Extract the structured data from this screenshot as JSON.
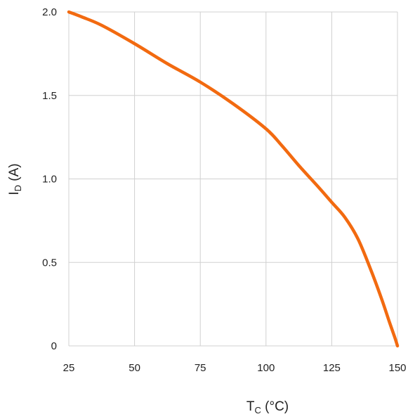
{
  "chart_data": {
    "type": "line",
    "title": "",
    "xlabel": {
      "main": "T",
      "sub": "C",
      "unit": " (°C)"
    },
    "ylabel": {
      "main": "I",
      "sub": "D",
      "unit": " (A)"
    },
    "xlim": [
      25,
      150
    ],
    "ylim": [
      0,
      2.0
    ],
    "xticks": [
      25,
      50,
      75,
      100,
      125,
      150
    ],
    "xtick_labels": [
      "25",
      "50",
      "75",
      "100",
      "125",
      "150"
    ],
    "yticks": [
      0,
      0.5,
      1.0,
      1.5,
      2.0
    ],
    "ytick_labels": [
      "0",
      "0.5",
      "1.0",
      "1.5",
      "2.0"
    ],
    "grid": true,
    "legend": "none",
    "series": [
      {
        "color": "#f26a10",
        "x": [
          25,
          30,
          37.5,
          50,
          62.5,
          75,
          87.5,
          100,
          106,
          112.5,
          120,
          125,
          130,
          135,
          140,
          144,
          147,
          149,
          150
        ],
        "y": [
          2.0,
          1.97,
          1.92,
          1.81,
          1.69,
          1.58,
          1.45,
          1.3,
          1.2,
          1.08,
          0.95,
          0.86,
          0.77,
          0.64,
          0.45,
          0.28,
          0.14,
          0.05,
          0.0
        ]
      }
    ]
  }
}
